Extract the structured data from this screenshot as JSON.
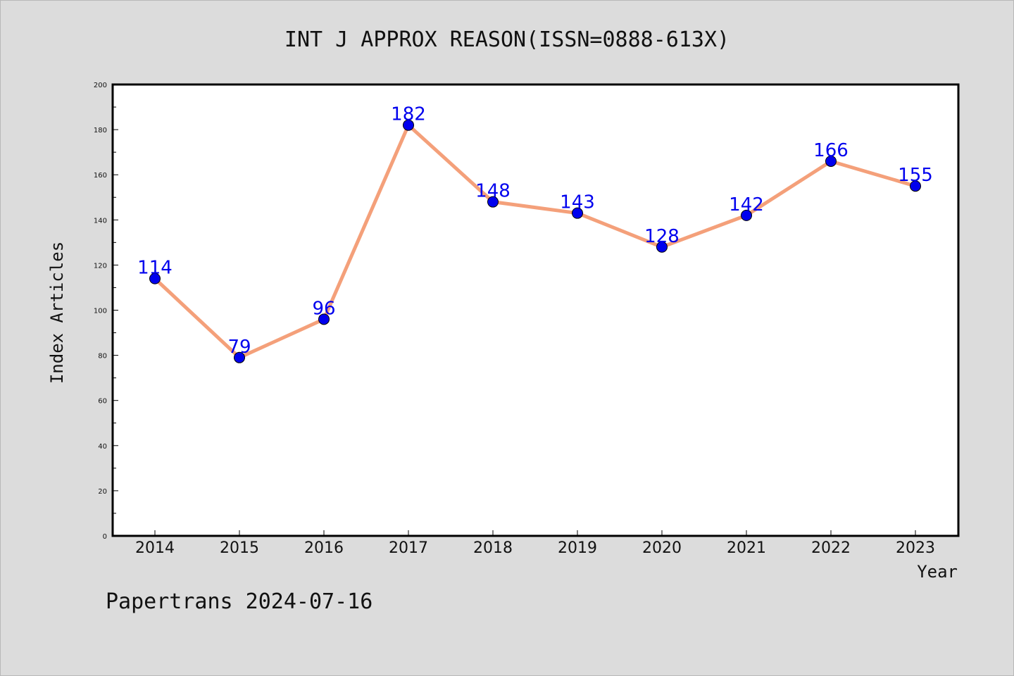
{
  "chart_data": {
    "type": "line",
    "title": "INT J APPROX REASON(ISSN=0888-613X)",
    "xlabel": "Year",
    "ylabel": "Index Articles",
    "categories": [
      "2014",
      "2015",
      "2016",
      "2017",
      "2018",
      "2019",
      "2020",
      "2021",
      "2022",
      "2023"
    ],
    "series": [
      {
        "values": [
          114,
          79,
          96,
          182,
          148,
          143,
          128,
          142,
          166,
          155
        ]
      }
    ],
    "ylim": [
      0,
      200
    ],
    "yticks": [
      0,
      20,
      40,
      60,
      80,
      100,
      120,
      140,
      160,
      180,
      200
    ],
    "grid": false,
    "line_color": "#f4a07a",
    "marker_color": "#0000ee",
    "label_color": "#0000ee"
  },
  "footer": {
    "text": "Papertrans 2024-07-16"
  }
}
